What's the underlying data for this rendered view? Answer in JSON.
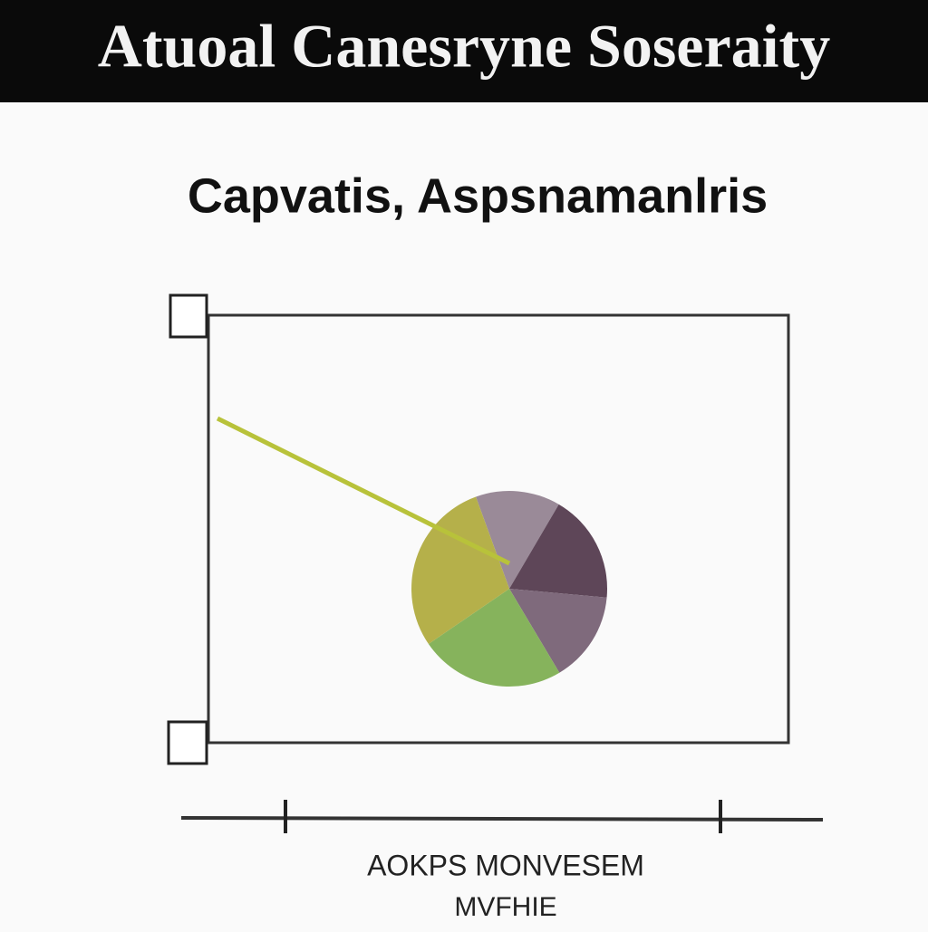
{
  "header": {
    "title": "Atuoal Canesryne Soseraity"
  },
  "chart_data": {
    "type": "pie",
    "title": "Capvatis, Aspsnamanlris",
    "values": [
      14,
      18,
      15,
      24,
      29
    ],
    "colors": [
      "#9a8a98",
      "#5e4658",
      "#7f6a7c",
      "#86b35c",
      "#b5b04a"
    ],
    "pointer_color": "#b8c23a"
  },
  "footer": {
    "label": "AOKPS MONVESEM",
    "sublabel": "MVFHIE"
  }
}
